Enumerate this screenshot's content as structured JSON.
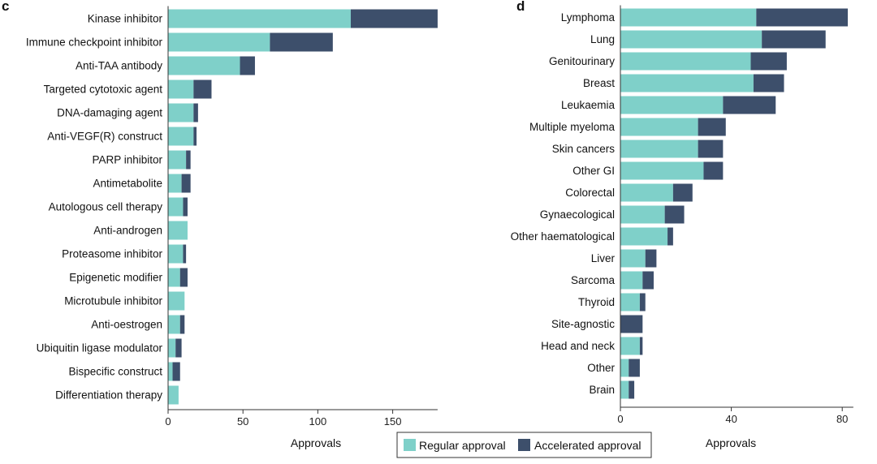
{
  "colors": {
    "regular": "#7fd0c9",
    "accelerated": "#3d4f6b"
  },
  "legend": {
    "regular_label": "Regular approval",
    "accelerated_label": "Accelerated approval"
  },
  "chart_data": [
    {
      "panel": "c",
      "type": "bar",
      "orientation": "horizontal",
      "stacked": true,
      "xlabel": "Approvals",
      "xlim": [
        0,
        180
      ],
      "xticks": [
        0,
        50,
        100,
        150
      ],
      "categories": [
        "Kinase inhibitor",
        "Immune checkpoint inhibitor",
        "Anti-TAA antibody",
        "Targeted cytotoxic agent",
        "DNA-damaging agent",
        "Anti-VEGF(R) construct",
        "PARP inhibitor",
        "Antimetabolite",
        "Autologous cell therapy",
        "Anti-androgen",
        "Proteasome inhibitor",
        "Epigenetic modifier",
        "Microtubule inhibitor",
        "Anti-oestrogen",
        "Ubiquitin ligase modulator",
        "Bispecific construct",
        "Differentiation therapy"
      ],
      "series": [
        {
          "name": "Regular approval",
          "values": [
            122,
            68,
            48,
            17,
            17,
            17,
            12,
            9,
            10,
            13,
            10,
            8,
            11,
            8,
            5,
            3,
            7
          ]
        },
        {
          "name": "Accelerated approval",
          "values": [
            58,
            42,
            10,
            12,
            3,
            2,
            3,
            6,
            3,
            0,
            2,
            5,
            0,
            3,
            4,
            5,
            0
          ]
        }
      ]
    },
    {
      "panel": "d",
      "type": "bar",
      "orientation": "horizontal",
      "stacked": true,
      "xlabel": "Approvals",
      "xlim": [
        0,
        84
      ],
      "xticks": [
        0,
        40,
        80
      ],
      "categories": [
        "Lymphoma",
        "Lung",
        "Genitourinary",
        "Breast",
        "Leukaemia",
        "Multiple myeloma",
        "Skin cancers",
        "Other GI",
        "Colorectal",
        "Gynaecological",
        "Other haematological",
        "Liver",
        "Sarcoma",
        "Thyroid",
        "Site-agnostic",
        "Head and neck",
        "Other",
        "Brain"
      ],
      "series": [
        {
          "name": "Regular approval",
          "values": [
            49,
            51,
            47,
            48,
            37,
            28,
            28,
            30,
            19,
            16,
            17,
            9,
            8,
            7,
            0,
            7,
            3,
            3
          ]
        },
        {
          "name": "Accelerated approval",
          "values": [
            33,
            23,
            13,
            11,
            19,
            10,
            9,
            7,
            7,
            7,
            2,
            4,
            4,
            2,
            8,
            1,
            4,
            2
          ]
        }
      ]
    }
  ]
}
